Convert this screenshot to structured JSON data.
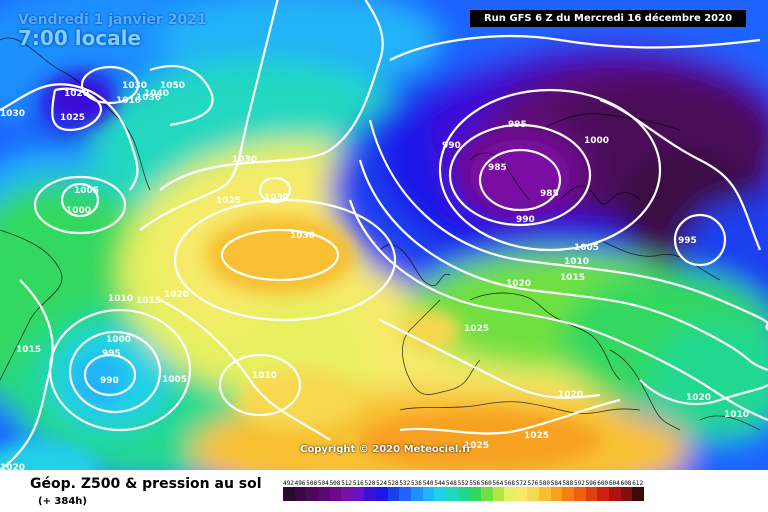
{
  "header": {
    "date": "Vendredi 1 janvier 2021",
    "time": "7:00 locale",
    "run": "Run GFS 6 Z du Mercredi 16 décembre 2020"
  },
  "copyright": "Copyright © 2020 Meteociel.fr",
  "footer": {
    "title": "Géop. Z500 & pression au sol",
    "subtitle": "(+ 384h)"
  },
  "colors": {
    "ocean_blue": "#1e64ff",
    "deep_purple": "#3e0a4a",
    "yellow": "#f3e66a",
    "orange": "#f7a92a",
    "isobar": "#ffffff"
  },
  "scale": [
    {
      "label": "492",
      "color": "#2a0a2e"
    },
    {
      "label": "496",
      "color": "#3a0a42"
    },
    {
      "label": "500",
      "color": "#4a0a58"
    },
    {
      "label": "504",
      "color": "#5a0a6e"
    },
    {
      "label": "508",
      "color": "#6a0a88"
    },
    {
      "label": "512",
      "color": "#7a10a4"
    },
    {
      "label": "516",
      "color": "#6a10c4"
    },
    {
      "label": "520",
      "color": "#3a10d8"
    },
    {
      "label": "524",
      "color": "#1a18e8"
    },
    {
      "label": "528",
      "color": "#1a40f0"
    },
    {
      "label": "532",
      "color": "#1e64ff"
    },
    {
      "label": "536",
      "color": "#1e90ff"
    },
    {
      "label": "540",
      "color": "#20b4f8"
    },
    {
      "label": "544",
      "color": "#20d0e8"
    },
    {
      "label": "548",
      "color": "#20d8c0"
    },
    {
      "label": "552",
      "color": "#20d890"
    },
    {
      "label": "556",
      "color": "#30d860"
    },
    {
      "label": "560",
      "color": "#70e040"
    },
    {
      "label": "564",
      "color": "#b0e840"
    },
    {
      "label": "568",
      "color": "#e8f060"
    },
    {
      "label": "572",
      "color": "#f6ea6a"
    },
    {
      "label": "576",
      "color": "#f8d850"
    },
    {
      "label": "580",
      "color": "#f8c030"
    },
    {
      "label": "584",
      "color": "#f8a020"
    },
    {
      "label": "588",
      "color": "#f88010"
    },
    {
      "label": "592",
      "color": "#f06010"
    },
    {
      "label": "596",
      "color": "#e04010"
    },
    {
      "label": "600",
      "color": "#d02010"
    },
    {
      "label": "604",
      "color": "#b01010"
    },
    {
      "label": "608",
      "color": "#801010"
    },
    {
      "label": "612",
      "color": "#400808"
    }
  ],
  "isobar_labels": [
    {
      "text": "1030"
    },
    {
      "text": "1020"
    },
    {
      "text": "1025"
    },
    {
      "text": "1030"
    },
    {
      "text": "1010"
    },
    {
      "text": "1040"
    },
    {
      "text": "1050"
    },
    {
      "text": "1036"
    },
    {
      "text": "1005"
    },
    {
      "text": "1000"
    },
    {
      "text": "1030"
    },
    {
      "text": "1025"
    },
    {
      "text": "1030"
    },
    {
      "text": "1030"
    },
    {
      "text": "1010"
    },
    {
      "text": "1015"
    },
    {
      "text": "1020"
    },
    {
      "text": "1000"
    },
    {
      "text": "995"
    },
    {
      "text": "990"
    },
    {
      "text": "1005"
    },
    {
      "text": "1015"
    },
    {
      "text": "1010"
    },
    {
      "text": "995"
    },
    {
      "text": "1000"
    },
    {
      "text": "990"
    },
    {
      "text": "985"
    },
    {
      "text": "985"
    },
    {
      "text": "990"
    },
    {
      "text": "1005"
    },
    {
      "text": "1010"
    },
    {
      "text": "1015"
    },
    {
      "text": "1020"
    },
    {
      "text": "995"
    },
    {
      "text": "1025"
    },
    {
      "text": "1020"
    },
    {
      "text": "1020"
    },
    {
      "text": "1010"
    },
    {
      "text": "1025"
    },
    {
      "text": "1025"
    },
    {
      "text": "1020"
    }
  ]
}
